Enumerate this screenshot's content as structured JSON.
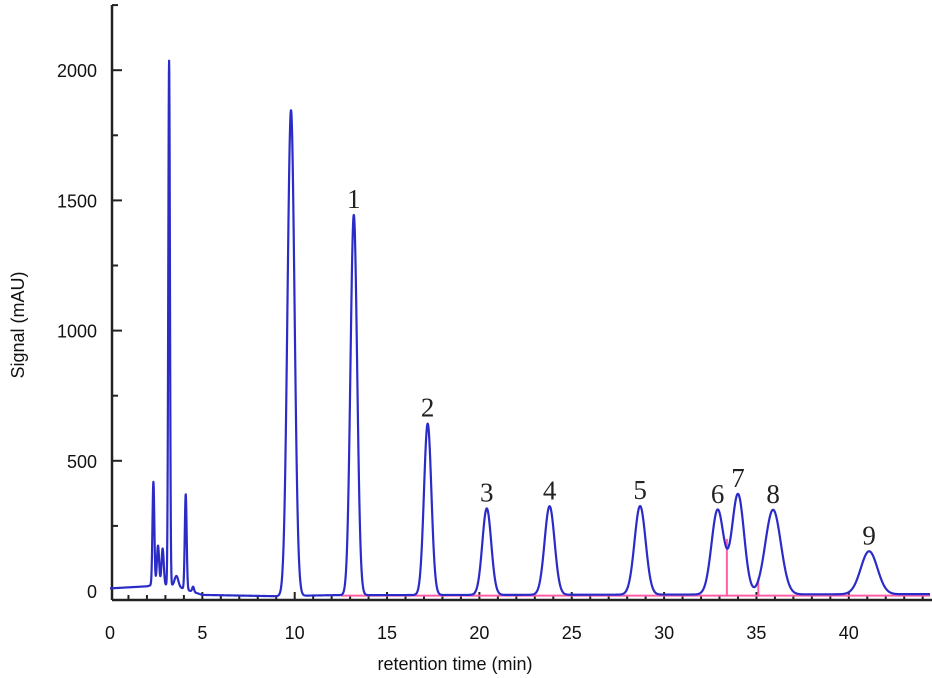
{
  "chart_data": {
    "type": "line",
    "title": "",
    "xlabel": "retention time (min)",
    "ylabel": "Signal (mAU)",
    "xlim": [
      0,
      44.4
    ],
    "ylim": [
      -30,
      2300
    ],
    "x_ticks": [
      "0",
      "5",
      "10",
      "15",
      "20",
      "25",
      "30",
      "35",
      "40"
    ],
    "x_tick_values": [
      0,
      5,
      10,
      15,
      20,
      25,
      30,
      35,
      40
    ],
    "y_ticks": [
      "0",
      "500",
      "1000",
      "1500",
      "2000"
    ],
    "y_tick_values": [
      0,
      500,
      1000,
      1500,
      2000
    ],
    "grid": false,
    "series_color": "#2b2bc8",
    "baseline_color": "#ff5fa8",
    "signal_baseline": [
      [
        0,
        10
      ],
      [
        2,
        18
      ],
      [
        2.4,
        25
      ],
      [
        3.5,
        20
      ],
      [
        5,
        -15
      ],
      [
        9,
        -20
      ],
      [
        12,
        -16
      ],
      [
        44.4,
        -12
      ]
    ],
    "peaks": [
      {
        "t": 2.35,
        "h": 395,
        "sigma": 0.05,
        "label": ""
      },
      {
        "t": 2.6,
        "h": 150,
        "sigma": 0.06,
        "label": ""
      },
      {
        "t": 2.85,
        "h": 140,
        "sigma": 0.06,
        "label": ""
      },
      {
        "t": 3.2,
        "h": 2015,
        "sigma": 0.045,
        "label": ""
      },
      {
        "t": 3.6,
        "h": 40,
        "sigma": 0.1,
        "label": ""
      },
      {
        "t": 4.1,
        "h": 365,
        "sigma": 0.05,
        "label": ""
      },
      {
        "t": 4.5,
        "h": 20,
        "sigma": 0.05,
        "label": ""
      },
      {
        "t": 9.8,
        "h": 1865,
        "sigma": 0.19,
        "label": ""
      },
      {
        "t": 13.2,
        "h": 1460,
        "sigma": 0.18,
        "label": "1"
      },
      {
        "t": 17.2,
        "h": 658,
        "sigma": 0.2,
        "label": "2"
      },
      {
        "t": 20.4,
        "h": 332,
        "sigma": 0.24,
        "label": "3"
      },
      {
        "t": 23.8,
        "h": 340,
        "sigma": 0.27,
        "label": "4"
      },
      {
        "t": 28.7,
        "h": 340,
        "sigma": 0.3,
        "label": "5"
      },
      {
        "t": 32.9,
        "h": 325,
        "sigma": 0.33,
        "label": "6"
      },
      {
        "t": 34.0,
        "h": 385,
        "sigma": 0.33,
        "label": "7"
      },
      {
        "t": 35.9,
        "h": 325,
        "sigma": 0.42,
        "label": "8"
      },
      {
        "t": 41.1,
        "h": 165,
        "sigma": 0.45,
        "label": "9"
      }
    ],
    "integration_baseline": {
      "start": 12.5,
      "end": 44.4,
      "value": -18
    },
    "drop_lines": [
      {
        "t": 33.4,
        "top": 200
      },
      {
        "t": 35.1,
        "top": 50
      }
    ]
  }
}
